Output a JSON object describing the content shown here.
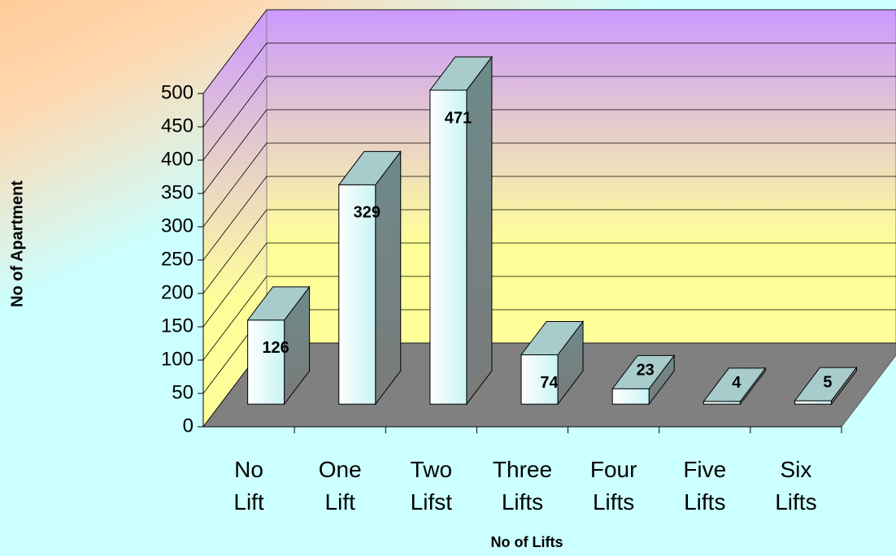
{
  "chart_data": {
    "type": "bar3d",
    "categories": [
      "No Lift",
      "One Lift",
      "Two Lifst",
      "Three Lifts",
      "Four Lifts",
      "Five Lifts",
      "Six Lifts"
    ],
    "values": [
      126,
      329,
      471,
      74,
      23,
      4,
      5
    ],
    "x_label": "No of Lifts",
    "y_label": "No of Apartment",
    "ylim": [
      0,
      500
    ],
    "yticks": [
      0,
      50,
      100,
      150,
      200,
      250,
      300,
      350,
      400,
      450,
      500
    ],
    "grid": true,
    "color": "#e6ffff"
  }
}
